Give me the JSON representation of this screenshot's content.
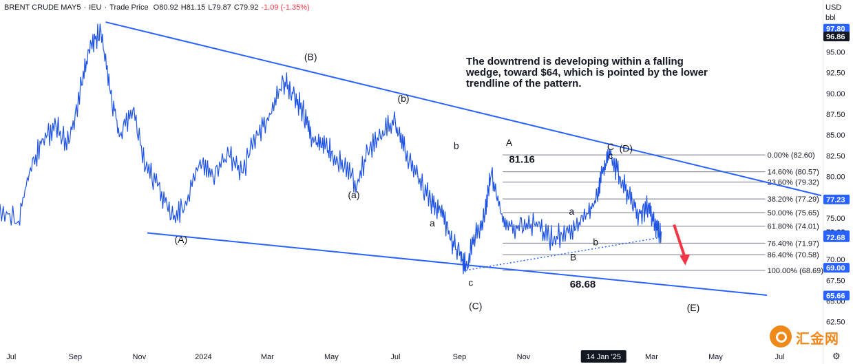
{
  "header": {
    "symbol": "BRENT CRUDE MAY5",
    "separator": "·",
    "exchange": "IEU",
    "price_type": "Trade Price",
    "open": "O80.92",
    "high": "H81.15",
    "low": "L79.87",
    "close": "C79.92",
    "change": "-1.09 (-1.35%)"
  },
  "currency": {
    "code": "USD",
    "unit": "bbl"
  },
  "note": "The downtrend is developing within a falling wedge, toward $64, which is pointed by the lower trendline of the pattern.",
  "watermark": "汇金网",
  "colors": {
    "price": "#1e53e5",
    "trendline": "#2962ff",
    "fib": "#787b86",
    "arrow": "#f23645",
    "label_bg": "#2962ff"
  },
  "chart_data": {
    "type": "line",
    "title": "",
    "ylim": [
      59.4,
      99.6
    ],
    "y_ticks": [
      62.5,
      65.0,
      67.5,
      70.0,
      72.5,
      75.0,
      77.5,
      80.0,
      82.5,
      85.0,
      87.5,
      90.0,
      92.5,
      95.0
    ],
    "y_tick_labels": [
      "62.50",
      "65.00",
      "67.50",
      "70.00",
      "72.50",
      "75.00",
      "77.50",
      "80.00",
      "82.50",
      "85.00",
      "87.50",
      "90.00",
      "92.50",
      "95.00"
    ],
    "x_ticks": [
      0,
      2,
      4,
      6,
      8,
      10,
      12,
      14,
      16,
      18.5,
      20,
      22,
      24
    ],
    "x_tick_labels": [
      "Jul",
      "Sep",
      "Nov",
      "2024",
      "Mar",
      "May",
      "Jul",
      "Sep",
      "Nov",
      "14 Jan '25",
      "Mar",
      "May",
      "Jul"
    ],
    "x_domain": [
      -0.35,
      25.3
    ],
    "series": [
      {
        "x": [
          -0.4,
          0.2,
          0.6,
          1.0,
          1.4,
          1.8,
          2.2,
          2.5,
          2.8,
          3.1,
          3.4,
          3.8,
          4.2,
          4.6,
          5.0,
          5.4,
          5.9,
          6.3,
          6.8,
          7.2,
          7.7,
          8.1,
          8.5,
          8.8,
          9.1,
          9.4,
          9.7,
          10.0,
          10.4,
          10.8,
          11.2,
          11.6,
          12.0,
          12.3,
          12.7,
          13.1,
          13.4,
          13.7,
          14.0,
          14.2,
          14.5,
          14.8,
          15.0,
          15.3,
          15.6,
          16.0,
          16.4,
          16.8,
          17.2,
          17.6,
          18.0,
          18.3,
          18.5,
          18.7,
          19.0,
          19.3,
          19.6,
          19.9,
          20.1,
          20.3
        ],
        "values": [
          76.5,
          74.5,
          81.0,
          84.5,
          86.0,
          84.0,
          91.0,
          96.0,
          97.5,
          90.0,
          85.0,
          88.0,
          81.0,
          79.0,
          75.0,
          76.0,
          82.0,
          80.0,
          82.5,
          80.5,
          85.0,
          87.5,
          91.5,
          90.0,
          88.0,
          84.5,
          83.5,
          83.0,
          81.0,
          79.0,
          83.5,
          85.5,
          86.5,
          83.0,
          80.0,
          77.0,
          76.0,
          72.5,
          70.5,
          69.1,
          73.0,
          75.5,
          80.5,
          75.5,
          74.0,
          73.5,
          74.5,
          72.5,
          73.0,
          73.5,
          75.5,
          77.5,
          81.0,
          82.6,
          80.0,
          77.5,
          75.5,
          76.5,
          74.0,
          73.3
        ]
      }
    ],
    "wave_labels": [
      {
        "text": "(A)",
        "x": 5.3,
        "y": 72.0
      },
      {
        "text": "(B)",
        "x": 9.35,
        "y": 94.0
      },
      {
        "text": "(C)",
        "x": 14.5,
        "y": 64.0
      },
      {
        "text": "(D)",
        "x": 19.2,
        "y": 83.0
      },
      {
        "text": "(E)",
        "x": 21.3,
        "y": 63.8
      },
      {
        "text": "(a)",
        "x": 10.7,
        "y": 77.4
      },
      {
        "text": "(b)",
        "x": 12.25,
        "y": 89.0
      },
      {
        "text": "a",
        "x": 13.15,
        "y": 74.0
      },
      {
        "text": "b",
        "x": 13.9,
        "y": 83.3
      },
      {
        "text": "c",
        "x": 14.35,
        "y": 66.8
      },
      {
        "text": "A",
        "x": 15.55,
        "y": 83.7
      },
      {
        "text": "B",
        "x": 17.55,
        "y": 69.9
      },
      {
        "text": "C",
        "x": 18.72,
        "y": 83.2
      },
      {
        "text": "a",
        "x": 17.5,
        "y": 75.4
      },
      {
        "text": "b",
        "x": 18.25,
        "y": 71.7
      },
      {
        "text": "c",
        "x": 18.72,
        "y": 82.1
      }
    ],
    "value_labels": [
      {
        "text": "81.16",
        "x": 15.95,
        "y": 81.65
      },
      {
        "text": "68.68",
        "x": 17.85,
        "y": 66.6
      }
    ],
    "fib_levels": [
      {
        "ratio": "0.00%",
        "value": 82.6,
        "label": "0.00% (82.60)"
      },
      {
        "ratio": "14.60%",
        "value": 80.57,
        "label": "14.60% (80.57)"
      },
      {
        "ratio": "23.60%",
        "value": 79.32,
        "label": "23.60% (79.32)"
      },
      {
        "ratio": "38.20%",
        "value": 77.29,
        "label": "38.20% (77.29)"
      },
      {
        "ratio": "50.00%",
        "value": 75.65,
        "label": "50.00% (75.65)"
      },
      {
        "ratio": "61.80%",
        "value": 74.01,
        "label": "61.80% (74.01)"
      },
      {
        "ratio": "76.40%",
        "value": 71.97,
        "label": "76.40% (71.97)"
      },
      {
        "ratio": "86.40%",
        "value": 70.58,
        "label": "86.40% (70.58)"
      },
      {
        "ratio": "100.00%",
        "value": 68.69,
        "label": "100.00% (68.69)"
      }
    ],
    "trendlines": {
      "upper": {
        "from": [
          2.95,
          98.6
        ],
        "to": [
          25.3,
          77.7
        ]
      },
      "lower": {
        "from": [
          4.25,
          73.2
        ],
        "to": [
          23.6,
          65.7
        ]
      },
      "dotted": {
        "from": [
          14.2,
          68.7
        ],
        "to": [
          20.2,
          72.6
        ]
      }
    },
    "projection_arrow": {
      "from": [
        20.7,
        74.2
      ],
      "to": [
        21.05,
        69.3
      ]
    },
    "price_axis_labels": [
      {
        "text": "97.80",
        "value": 97.8,
        "style": "blue"
      },
      {
        "text": "96.86",
        "value": 96.86,
        "style": "dark"
      },
      {
        "text": "77.23",
        "value": 77.23,
        "style": "blue"
      },
      {
        "text": "73.33",
        "value": 73.33,
        "style": "plain"
      },
      {
        "text": "72.92",
        "value": 72.92,
        "style": "blue"
      },
      {
        "text": "72.68",
        "value": 72.68,
        "style": "blue"
      },
      {
        "text": "69.00",
        "value": 69.0,
        "style": "blue"
      },
      {
        "text": "65.66",
        "value": 65.66,
        "style": "blue"
      }
    ],
    "grid": false
  }
}
